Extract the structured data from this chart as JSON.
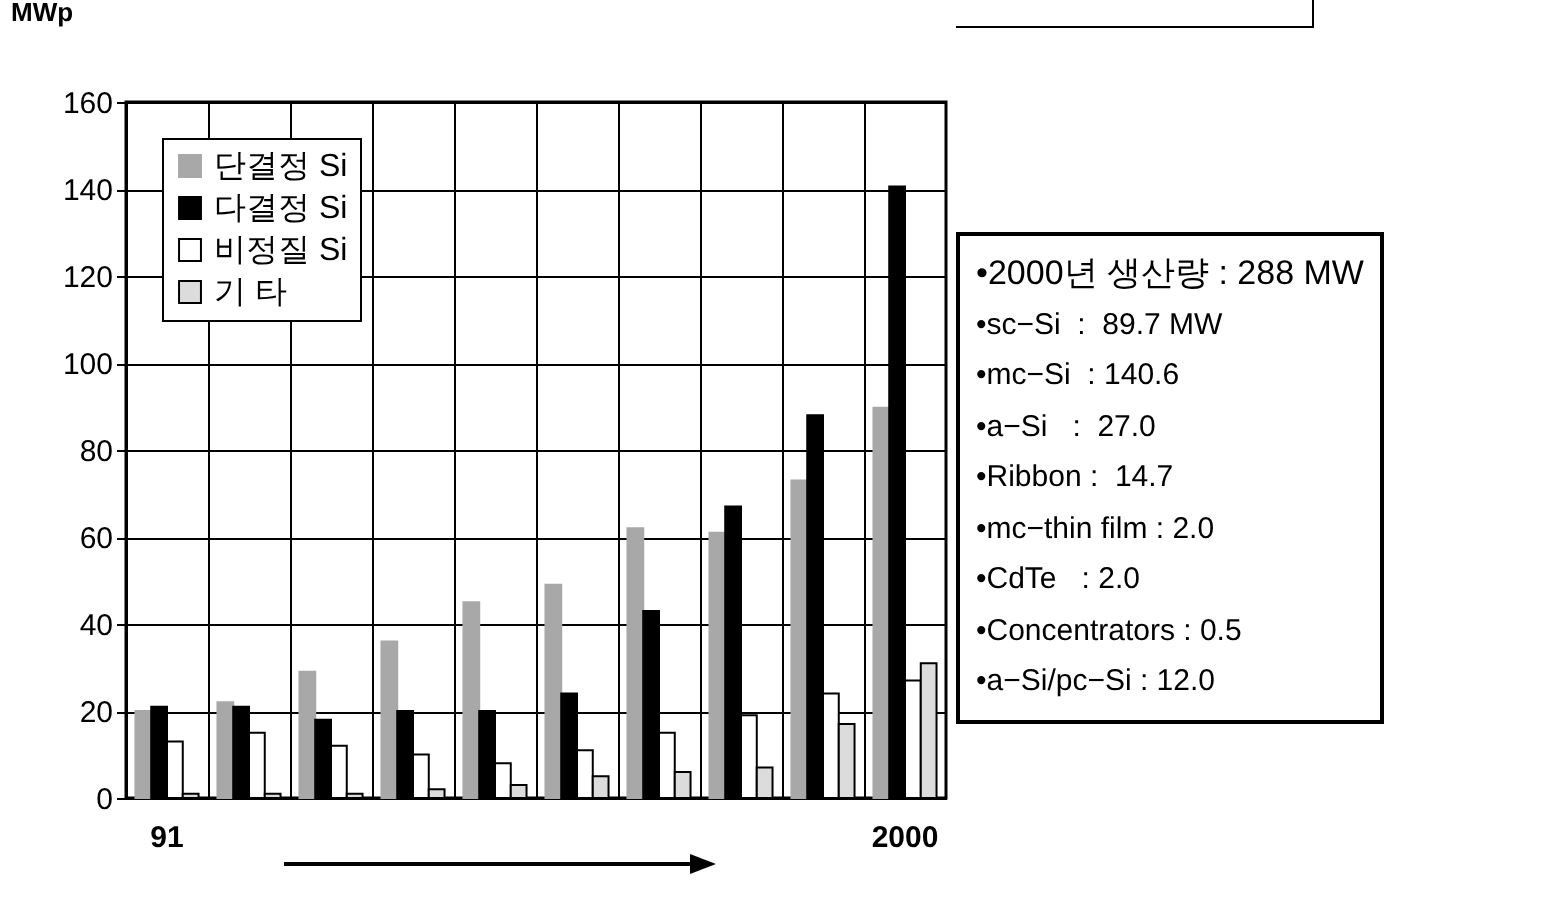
{
  "chart_data": {
    "type": "bar",
    "ylabel": "MWp",
    "categories": [
      "91",
      null,
      null,
      null,
      null,
      null,
      null,
      null,
      null,
      "2000"
    ],
    "series": [
      {
        "name": "단결정 Si",
        "color": "#a8a8a8",
        "values": [
          20,
          22,
          29,
          36,
          45,
          49,
          62,
          61,
          73,
          89.7
        ]
      },
      {
        "name": "다결정 Si",
        "color": "#000000",
        "values": [
          21,
          21,
          18,
          20,
          20,
          24,
          43,
          67,
          88,
          140.6
        ]
      },
      {
        "name": "비정질 Si",
        "color": "#ffffff",
        "values": [
          13,
          15,
          12,
          10,
          8,
          11,
          15,
          19,
          24,
          27
        ]
      },
      {
        "name": "기 타",
        "color": "#dcdcdc",
        "values": [
          1,
          1,
          1,
          2,
          3,
          5,
          6,
          7,
          17,
          31
        ]
      }
    ],
    "ylim": [
      0,
      160
    ],
    "yticks": [
      0,
      20,
      40,
      60,
      80,
      100,
      120,
      140,
      160
    ],
    "grid": true,
    "legend": "top left",
    "annotations": [
      "•2000년 생산량 : 288 MW",
      "•sc−Si  :  89.7 MW",
      "•mc−Si  : 140.6",
      "•a−Si   :  27.0",
      "•Ribbon :  14.7",
      "•mc−thin film : 2.0",
      "•CdTe   : 2.0",
      "•Concentrators : 0.5",
      "•a−Si/pc−Si : 12.0"
    ]
  }
}
